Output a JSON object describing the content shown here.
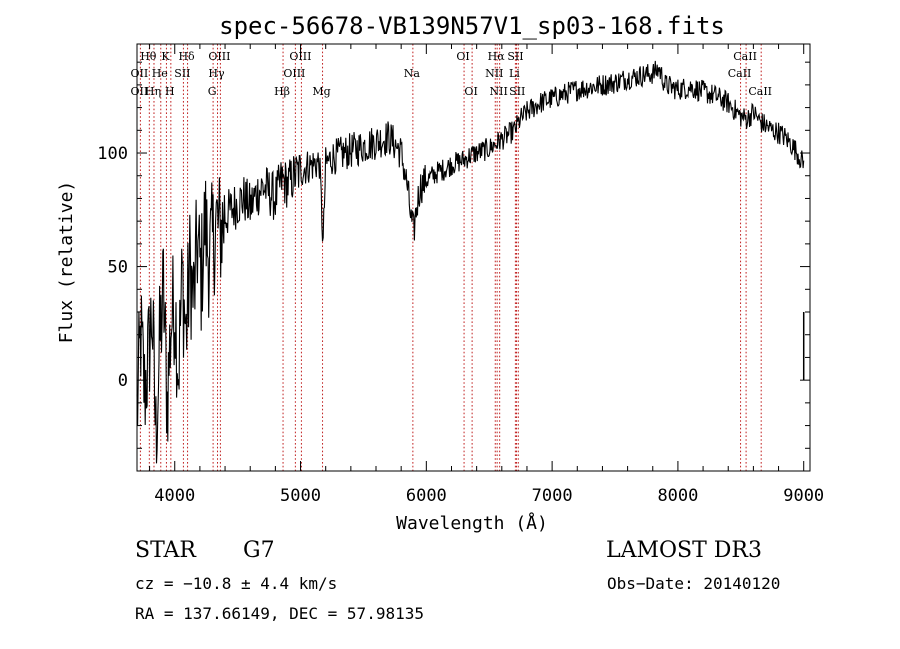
{
  "chart_data": {
    "type": "line",
    "title": "spec-56678-VB139N57V1_sp03-168.fits",
    "xlabel": "Wavelength (Å)",
    "ylabel": "Flux (relative)",
    "xlim": [
      3700,
      9050
    ],
    "ylim": [
      -40,
      148
    ],
    "x_ticks": [
      4000,
      5000,
      6000,
      7000,
      8000,
      9000
    ],
    "x_tick_labels": [
      "4000",
      "5000",
      "6000",
      "7000",
      "8000",
      "9000"
    ],
    "y_ticks": [
      0,
      50,
      100
    ],
    "y_tick_labels": [
      "0",
      "50",
      "100"
    ],
    "grid": false,
    "series": [
      {
        "name": "spectrum",
        "x": [
          3700,
          3730,
          3760,
          3790,
          3820,
          3850,
          3880,
          3910,
          3940,
          3970,
          4000,
          4030,
          4060,
          4090,
          4120,
          4150,
          4180,
          4210,
          4240,
          4270,
          4300,
          4330,
          4360,
          4400,
          4450,
          4500,
          4550,
          4600,
          4650,
          4700,
          4750,
          4800,
          4850,
          4900,
          4950,
          5000,
          5050,
          5100,
          5150,
          5180,
          5200,
          5250,
          5300,
          5350,
          5400,
          5450,
          5500,
          5550,
          5600,
          5650,
          5700,
          5750,
          5800,
          5850,
          5880,
          5900,
          5920,
          5950,
          6000,
          6050,
          6100,
          6150,
          6200,
          6250,
          6300,
          6350,
          6400,
          6450,
          6500,
          6550,
          6600,
          6650,
          6700,
          6750,
          6800,
          6850,
          6900,
          6950,
          7000,
          7100,
          7200,
          7300,
          7400,
          7500,
          7600,
          7700,
          7800,
          7850,
          7900,
          8000,
          8100,
          8200,
          8300,
          8400,
          8450,
          8500,
          8550,
          8600,
          8650,
          8700,
          8750,
          8800,
          8850,
          8900,
          8950,
          9000
        ],
        "y": [
          -15,
          20,
          -5,
          10,
          30,
          -25,
          15,
          40,
          -10,
          25,
          35,
          5,
          45,
          20,
          50,
          35,
          60,
          45,
          70,
          55,
          60,
          70,
          65,
          72,
          75,
          78,
          80,
          76,
          82,
          85,
          83,
          80,
          88,
          86,
          90,
          92,
          94,
          95,
          96,
          60,
          95,
          98,
          99,
          100,
          101,
          102,
          103,
          104,
          105,
          106,
          107,
          104,
          100,
          85,
          70,
          65,
          75,
          85,
          88,
          90,
          92,
          93,
          95,
          96,
          97,
          99,
          100,
          101,
          102,
          104,
          106,
          108,
          110,
          115,
          118,
          120,
          122,
          123,
          124,
          126,
          128,
          129,
          130,
          131,
          133,
          134,
          135,
          137,
          130,
          128,
          129,
          127,
          125,
          122,
          119,
          116,
          115,
          118,
          114,
          112,
          110,
          109,
          107,
          104,
          100,
          95
        ]
      }
    ],
    "spectral_lines": [
      {
        "label": "Hθ",
        "wavelength": 3798,
        "row": 0
      },
      {
        "label": "K",
        "wavelength": 3934,
        "row": 0
      },
      {
        "label": "Hδ",
        "wavelength": 4102,
        "row": 0
      },
      {
        "label": "OIII",
        "wavelength": 4363,
        "row": 0
      },
      {
        "label": "OIII",
        "wavelength": 5007,
        "row": 0
      },
      {
        "label": "Na",
        "wavelength": 5893,
        "row": 1
      },
      {
        "label": "OI",
        "wavelength": 6300,
        "row": 0
      },
      {
        "label": "Hα",
        "wavelength": 6563,
        "row": 0
      },
      {
        "label": "SII",
        "wavelength": 6717,
        "row": 0
      },
      {
        "label": "CaII",
        "wavelength": 8542,
        "row": 0
      },
      {
        "label": "OII",
        "wavelength": 3727,
        "row": 1
      },
      {
        "label": "He",
        "wavelength": 3889,
        "row": 1
      },
      {
        "label": "SII",
        "wavelength": 4069,
        "row": 1
      },
      {
        "label": "Hγ",
        "wavelength": 4340,
        "row": 1
      },
      {
        "label": "OIII",
        "wavelength": 4959,
        "row": 1
      },
      {
        "label": "NII",
        "wavelength": 6548,
        "row": 1
      },
      {
        "label": "Li",
        "wavelength": 6708,
        "row": 1
      },
      {
        "label": "CaII",
        "wavelength": 8498,
        "row": 1
      },
      {
        "label": "OII",
        "wavelength": 3727,
        "row": 2
      },
      {
        "label": "Hη",
        "wavelength": 3835,
        "row": 2
      },
      {
        "label": "H",
        "wavelength": 3969,
        "row": 2
      },
      {
        "label": "G",
        "wavelength": 4305,
        "row": 2
      },
      {
        "label": "Hβ",
        "wavelength": 4861,
        "row": 2
      },
      {
        "label": "Mg",
        "wavelength": 5175,
        "row": 2
      },
      {
        "label": "OI",
        "wavelength": 6364,
        "row": 2
      },
      {
        "label": "NII",
        "wavelength": 6583,
        "row": 2
      },
      {
        "label": "SII",
        "wavelength": 6731,
        "row": 2
      },
      {
        "label": "CaII",
        "wavelength": 8662,
        "row": 2
      }
    ]
  },
  "info": {
    "class_label": "STAR",
    "subclass_label": "G7",
    "cz_text": "cz = −10.8 ± 4.4 km/s",
    "radec_text": "RA = 137.66149, DEC =  57.98135",
    "survey_text": "LAMOST DR3",
    "obs_date_text": "Obs−Date: 20140120"
  }
}
